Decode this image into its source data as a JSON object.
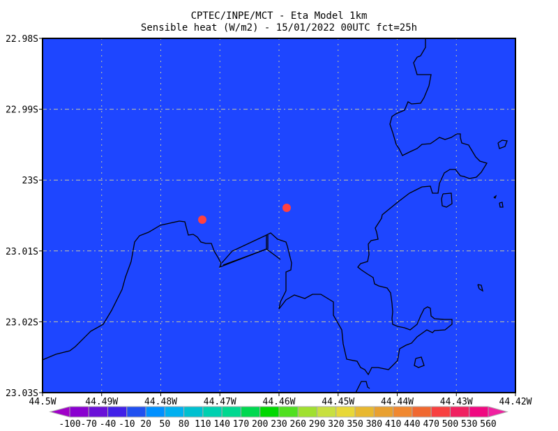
{
  "title": {
    "line1": "CPTEC/INPE/MCT -  Eta Model 1km",
    "line2": "Sensible heat (W/m2) - 15/01/2022 00UTC fct=25h"
  },
  "map": {
    "background_color": "#1e46ff",
    "coastline_color": "#000000",
    "grid_color": "#c8c8a0",
    "marker_color": "#ff4040",
    "x_ticks": [
      "44.5W",
      "44.49W",
      "44.48W",
      "44.47W",
      "44.46W",
      "44.45W",
      "44.44W",
      "44.43W",
      "44.42W"
    ],
    "y_ticks": [
      "22.98S",
      "22.99S",
      "23S",
      "23.01S",
      "23.02S",
      "23.03S"
    ]
  },
  "colorbar": {
    "labels": [
      "-100",
      "-70",
      "-40",
      "-10",
      "20",
      "50",
      "80",
      "110",
      "140",
      "170",
      "200",
      "230",
      "260",
      "290",
      "320",
      "350",
      "380",
      "410",
      "440",
      "470",
      "500",
      "530",
      "560"
    ],
    "low_color": "#a000c8",
    "high_color": "#f020a0",
    "colors": [
      "#8a00d0",
      "#6a10d8",
      "#4020e8",
      "#2050f0",
      "#0090ff",
      "#00b0f0",
      "#00c0d0",
      "#00d0b0",
      "#00d890",
      "#00d850",
      "#00d800",
      "#50e020",
      "#a0e030",
      "#c8e040",
      "#e8d838",
      "#e8b830",
      "#e8a030",
      "#f08830",
      "#f06830",
      "#f84040",
      "#f02060",
      "#f00880"
    ]
  }
}
